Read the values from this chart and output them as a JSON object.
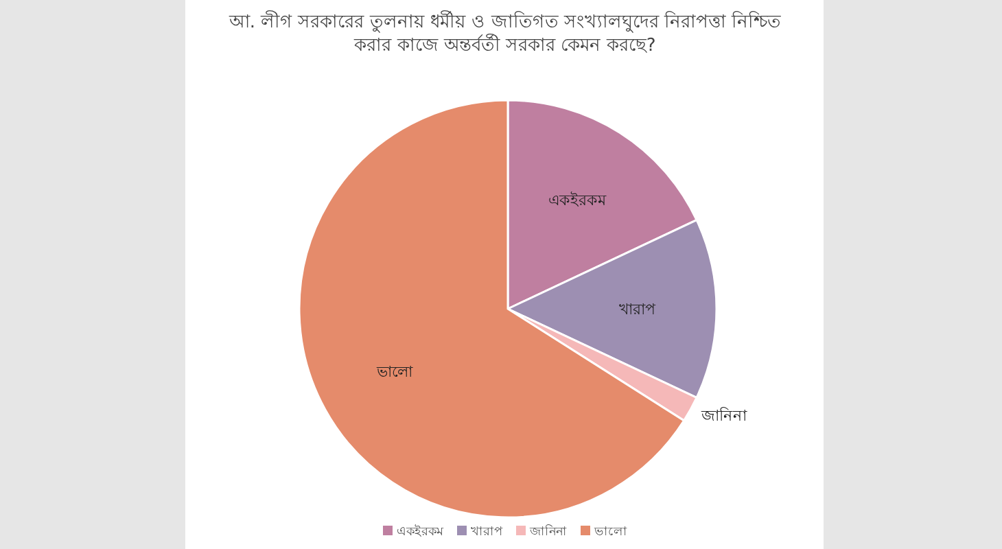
{
  "chart_data": {
    "type": "pie",
    "title": "আ. লীগ সরকারের তুলনায় ধর্মীয় ও জাতিগত সংখ্যালঘুদের নিরাপত্তা নিশ্চিত করার কাজে অন্তর্বর্তী সরকার কেমন করছে?",
    "categories": [
      "একইরকম",
      "খারাপ",
      "জানিনা",
      "ভালো"
    ],
    "values": [
      18,
      14,
      2,
      66
    ],
    "colors": [
      "#bf7fa0",
      "#9d8fb2",
      "#f5b8b8",
      "#e58b6b"
    ],
    "legend": "bottom"
  }
}
